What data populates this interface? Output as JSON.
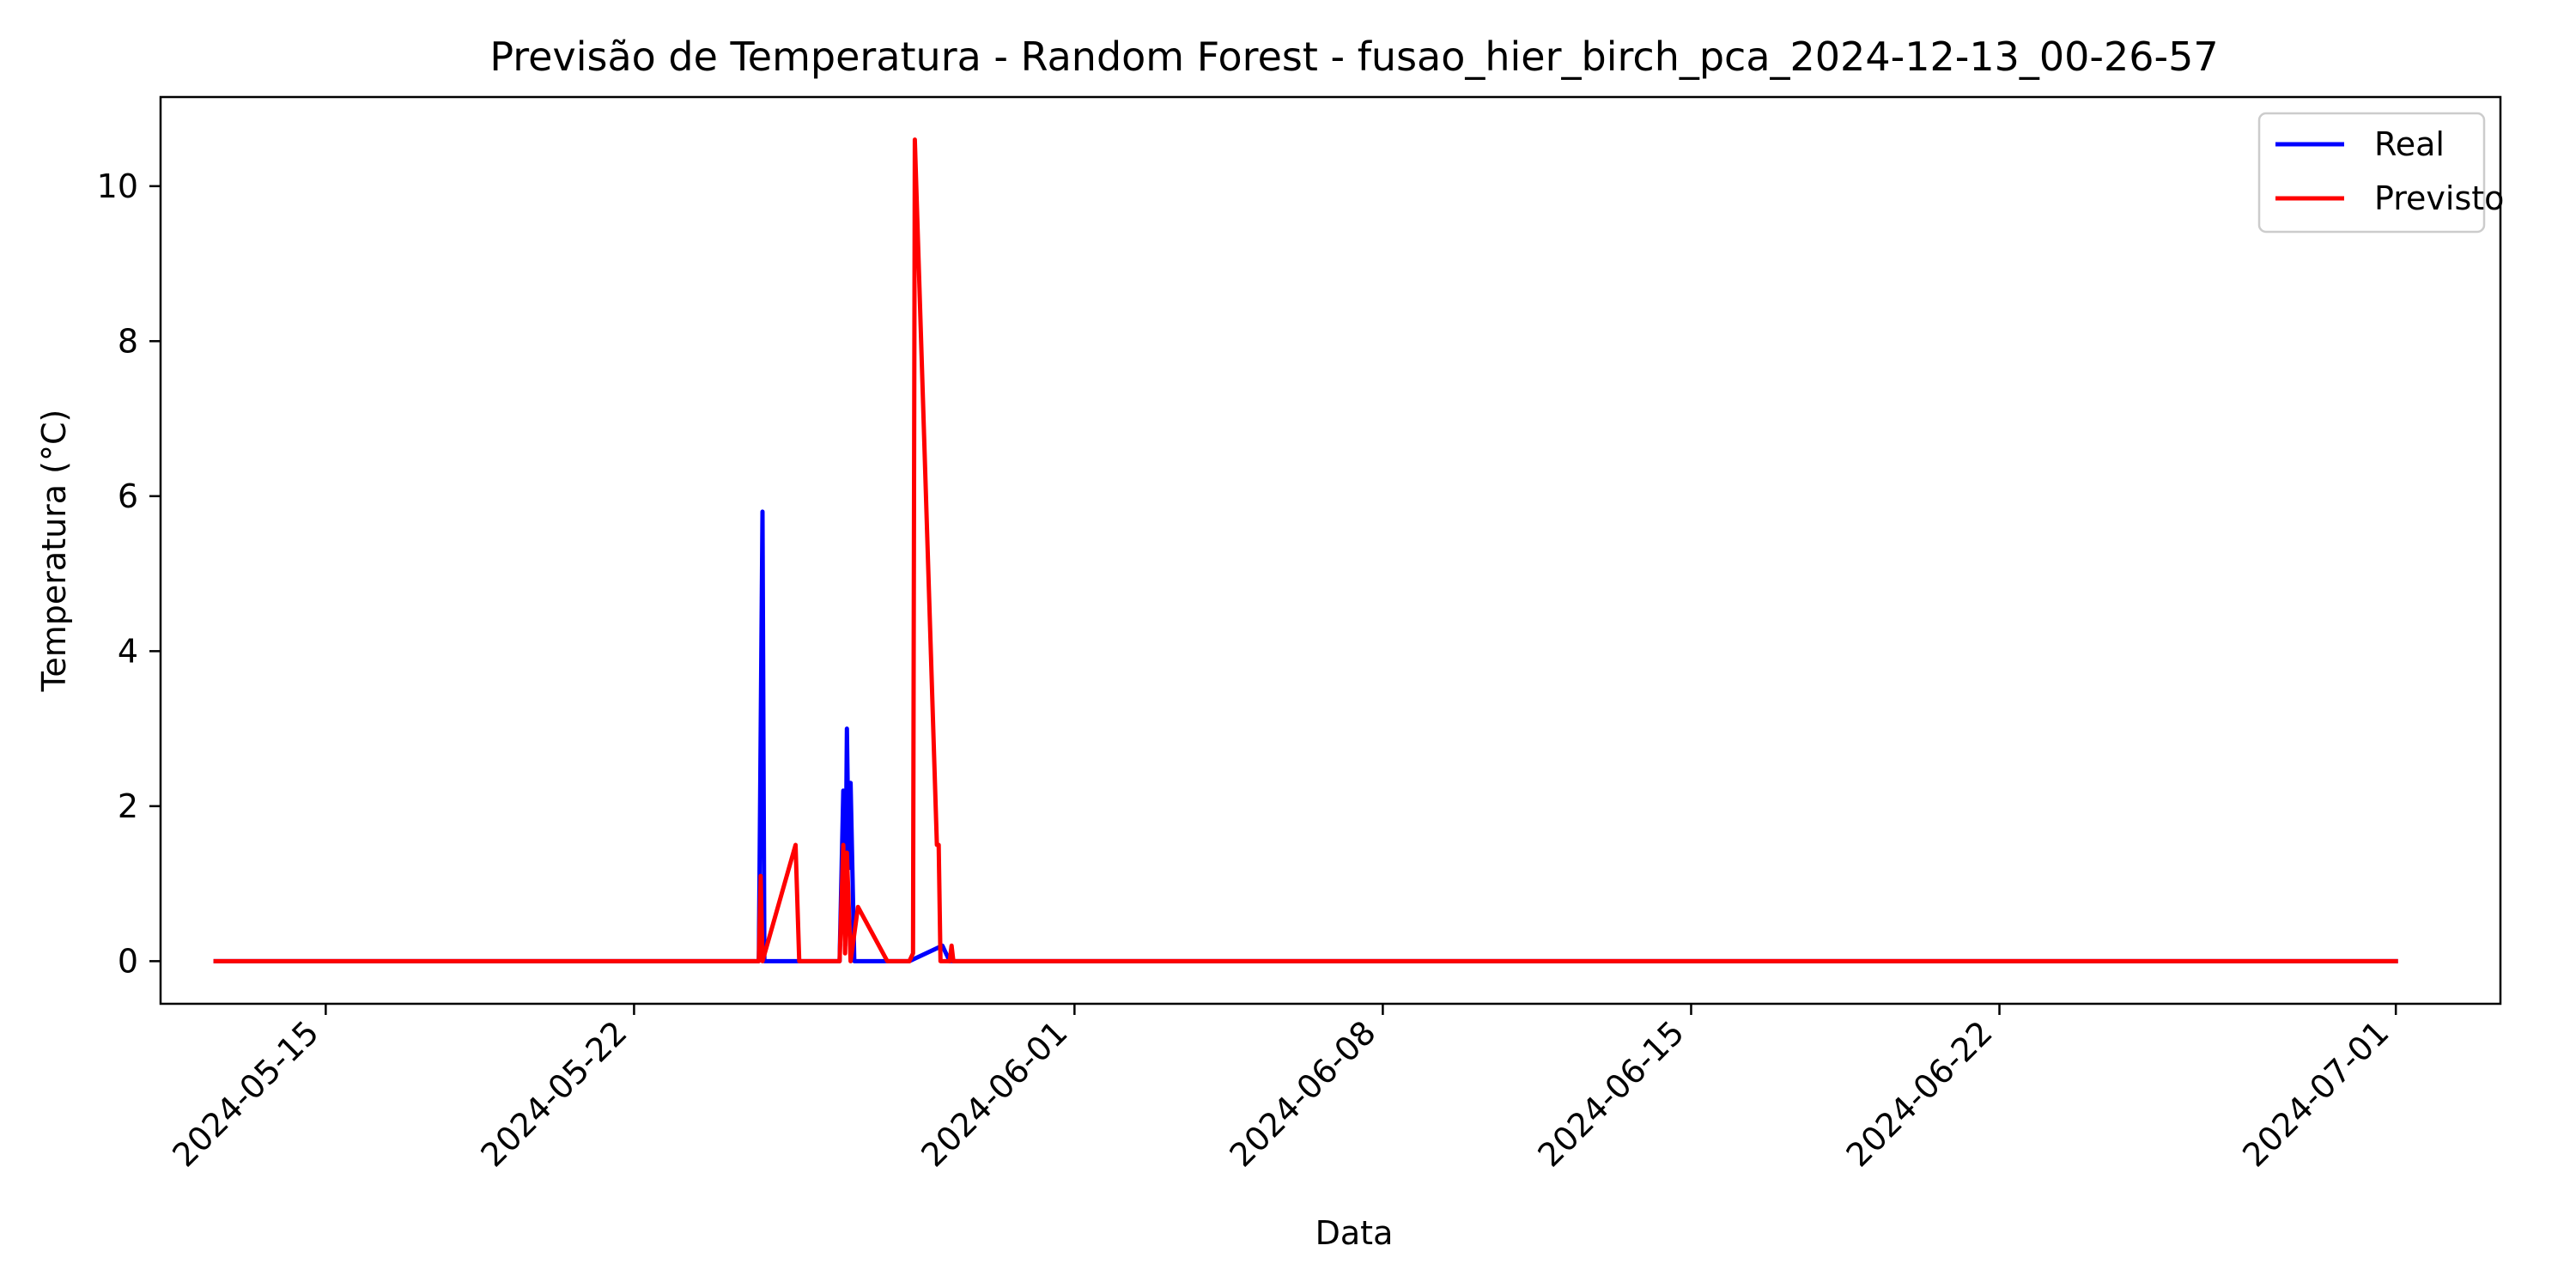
{
  "chart_data": {
    "type": "line",
    "title": "Previsão de Temperatura - Random Forest - fusao_hier_birch_pca_2024-12-13_00-26-57",
    "xlabel": "Data",
    "ylabel": "Temperatura (°C)",
    "xlim": [
      "2024-05-11T06:00",
      "2024-07-03T09:00"
    ],
    "ylim": [
      -0.55,
      11.15
    ],
    "x_ticks": [
      "2024-05-15",
      "2024-05-22",
      "2024-06-01",
      "2024-06-08",
      "2024-06-15",
      "2024-06-22",
      "2024-07-01"
    ],
    "y_ticks": [
      0,
      2,
      4,
      6,
      8,
      10
    ],
    "grid": false,
    "legend_position": "top-right",
    "series": [
      {
        "name": "Real",
        "color": "#0000ff",
        "points": [
          [
            "2024-05-12T12:00",
            0
          ],
          [
            "2024-05-24T20:00",
            0
          ],
          [
            "2024-05-24T22:00",
            5.8
          ],
          [
            "2024-05-24T23:00",
            0
          ],
          [
            "2024-05-26T16:00",
            0
          ],
          [
            "2024-05-26T18:00",
            2.2
          ],
          [
            "2024-05-26T19:00",
            0.2
          ],
          [
            "2024-05-26T20:00",
            3.0
          ],
          [
            "2024-05-26T21:00",
            1.2
          ],
          [
            "2024-05-26T22:00",
            2.3
          ],
          [
            "2024-05-27T00:00",
            0
          ],
          [
            "2024-05-28T06:00",
            0
          ],
          [
            "2024-05-29T00:00",
            0.2
          ],
          [
            "2024-05-29T04:00",
            0
          ],
          [
            "2024-07-01T00:00",
            0
          ]
        ]
      },
      {
        "name": "Previsto",
        "color": "#ff0000",
        "points": [
          [
            "2024-05-12T12:00",
            0
          ],
          [
            "2024-05-24T20:00",
            0
          ],
          [
            "2024-05-24T21:00",
            1.1
          ],
          [
            "2024-05-24T22:00",
            0
          ],
          [
            "2024-05-25T16:00",
            1.5
          ],
          [
            "2024-05-25T18:00",
            0
          ],
          [
            "2024-05-26T16:00",
            0
          ],
          [
            "2024-05-26T18:00",
            1.5
          ],
          [
            "2024-05-26T19:00",
            0.1
          ],
          [
            "2024-05-26T20:00",
            1.4
          ],
          [
            "2024-05-26T22:00",
            0
          ],
          [
            "2024-05-27T02:00",
            0.7
          ],
          [
            "2024-05-27T18:00",
            0
          ],
          [
            "2024-05-28T06:00",
            0
          ],
          [
            "2024-05-28T08:00",
            0.1
          ],
          [
            "2024-05-28T09:00",
            10.6
          ],
          [
            "2024-05-28T21:00",
            1.5
          ],
          [
            "2024-05-28T22:00",
            1.5
          ],
          [
            "2024-05-28T23:00",
            0
          ],
          [
            "2024-05-29T04:00",
            0
          ],
          [
            "2024-05-29T05:00",
            0.2
          ],
          [
            "2024-05-29T06:00",
            0
          ],
          [
            "2024-07-01T00:00",
            0
          ]
        ]
      }
    ]
  }
}
